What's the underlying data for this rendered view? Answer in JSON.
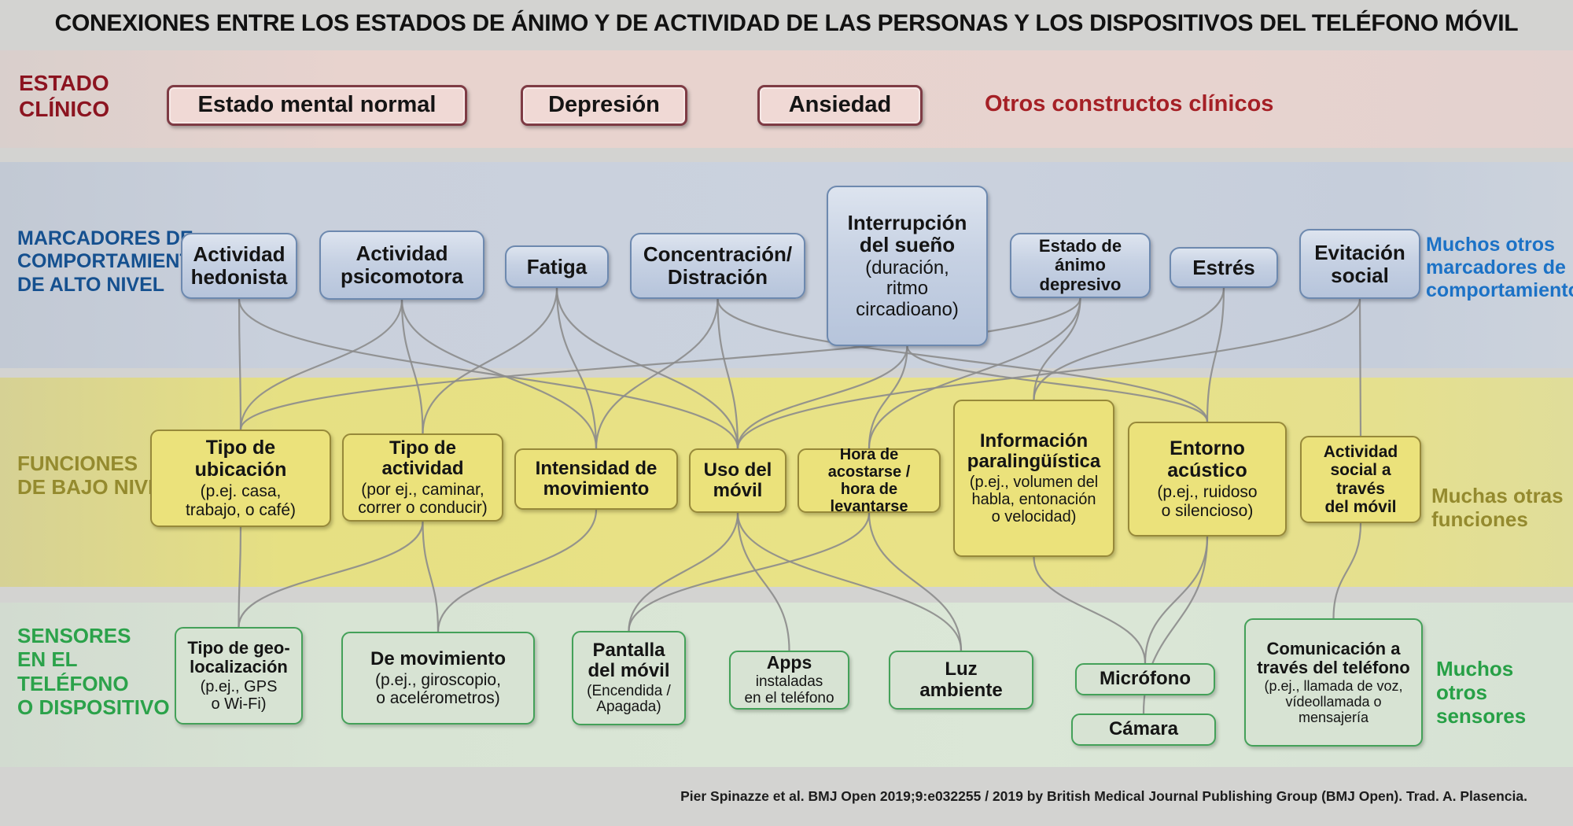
{
  "title": "CONEXIONES ENTRE LOS ESTADOS DE ÁNIMO Y DE ACTIVIDAD DE LAS PERSONAS Y LOS DISPOSITIVOS DEL TELÉFONO MÓVIL",
  "footer": "Pier Spinazze et al. BMJ Open 2019;9:e032255 / 2019 by British Medical Journal Publishing Group (BMJ Open). Trad. A. Plasencia.",
  "rows": {
    "clinical": {
      "label": "ESTADO\nCLÍNICO",
      "note": "Otros constructos clínicos"
    },
    "markers": {
      "label": "MARCADORES DE\nCOMPORTAMIENTO\nDE ALTO NIVEL",
      "note": "Muchos otros\nmarcadores de\ncomportamiento"
    },
    "functions": {
      "label": "FUNCIONES\nDE BAJO NIVEL",
      "note": "Muchas otras\nfunciones"
    },
    "sensors": {
      "label": "SENSORES\nEN EL\nTELÉFONO\nO DISPOSITIVO",
      "note": "Muchos\notros\nsensores"
    }
  },
  "nodes": {
    "mental_normal": {
      "label": "Estado mental normal"
    },
    "depresion": {
      "label": "Depresión"
    },
    "ansiedad": {
      "label": "Ansiedad"
    },
    "hedonista": {
      "label": "Actividad\nhedonista"
    },
    "psicomotora": {
      "label": "Actividad\npsicomotora"
    },
    "fatiga": {
      "label": "Fatiga"
    },
    "concentracion": {
      "label": "Concentración/\nDistración"
    },
    "sueno": {
      "label": "Interrupción\ndel sueño",
      "sub": "(duración,\nritmo\ncircadioano)"
    },
    "depresivo": {
      "label": "Estado de ánimo\ndepresivo"
    },
    "estres": {
      "label": "Estrés"
    },
    "evitacion": {
      "label": "Evitación\nsocial"
    },
    "tipo_ubicacion": {
      "label": "Tipo de\nubicación",
      "sub": "(p.ej. casa,\ntrabajo, o café)"
    },
    "tipo_actividad": {
      "label": "Tipo de actividad",
      "sub": "(por ej., caminar,\ncorrer o conducir)"
    },
    "intensidad": {
      "label": "Intensidad de\nmovimiento"
    },
    "uso_movil": {
      "label": "Uso del\nmóvil"
    },
    "hora_acostarse": {
      "label": "Hora de acostarse /\nhora de levantarse"
    },
    "informacion": {
      "label": "Información\nparalingüística",
      "sub": "(p.ej., volumen del\nhabla, entonación\no velocidad)"
    },
    "entorno": {
      "label": "Entorno\nacústico",
      "sub": "(p.ej., ruidoso\no silencioso)"
    },
    "actividad_social": {
      "label": "Actividad\nsocial a través\ndel móvil"
    },
    "geo": {
      "label": "Tipo de geo-\nlocalización",
      "sub": "(p.ej., GPS\no Wi-Fi)"
    },
    "movimiento": {
      "label": "De movimiento",
      "sub": "(p.ej., giroscopio,\no acelérometros)"
    },
    "pantalla": {
      "label": "Pantalla\ndel móvil",
      "sub": "(Encendida /\nApagada)"
    },
    "apps": {
      "label": "Apps",
      "sub": "instaladas\nen el teléfono"
    },
    "luz": {
      "label": "Luz\nambiente"
    },
    "microfono": {
      "label": "Micrófono"
    },
    "camara": {
      "label": "Cámara"
    },
    "comunicacion": {
      "label": "Comunicación a\ntravés del teléfono",
      "sub": "(p.ej., llamada de voz,\nvídeollamada o\nmensajería"
    }
  },
  "edges": [
    [
      "hedonista",
      "tipo_ubicacion"
    ],
    [
      "hedonista",
      "uso_movil"
    ],
    [
      "psicomotora",
      "tipo_ubicacion"
    ],
    [
      "psicomotora",
      "tipo_actividad"
    ],
    [
      "psicomotora",
      "intensidad"
    ],
    [
      "fatiga",
      "tipo_actividad"
    ],
    [
      "fatiga",
      "intensidad"
    ],
    [
      "fatiga",
      "uso_movil"
    ],
    [
      "concentracion",
      "intensidad"
    ],
    [
      "concentracion",
      "uso_movil"
    ],
    [
      "concentracion",
      "entorno"
    ],
    [
      "sueno",
      "uso_movil"
    ],
    [
      "sueno",
      "hora_acostarse"
    ],
    [
      "sueno",
      "entorno"
    ],
    [
      "depresivo",
      "tipo_ubicacion"
    ],
    [
      "depresivo",
      "hora_acostarse"
    ],
    [
      "depresivo",
      "informacion"
    ],
    [
      "estres",
      "informacion"
    ],
    [
      "estres",
      "entorno"
    ],
    [
      "evitacion",
      "uso_movil"
    ],
    [
      "evitacion",
      "actividad_social"
    ],
    [
      "tipo_ubicacion",
      "geo"
    ],
    [
      "tipo_actividad",
      "geo"
    ],
    [
      "tipo_actividad",
      "movimiento"
    ],
    [
      "intensidad",
      "movimiento"
    ],
    [
      "uso_movil",
      "pantalla"
    ],
    [
      "uso_movil",
      "apps"
    ],
    [
      "uso_movil",
      "luz"
    ],
    [
      "hora_acostarse",
      "pantalla"
    ],
    [
      "hora_acostarse",
      "luz"
    ],
    [
      "informacion",
      "microfono"
    ],
    [
      "entorno",
      "microfono"
    ],
    [
      "entorno",
      "camara"
    ],
    [
      "actividad_social",
      "comunicacion"
    ]
  ],
  "colors": {
    "clinical_label": "#8c1420",
    "clinical_note": "#a52026",
    "clinical_box_fill": "#f0d9d5",
    "clinical_box_border": "#7e3b44",
    "clinical_band": "#e8d3ce",
    "markers_label": "#15508f",
    "markers_note": "#1c72c6",
    "markers_box_fill": "#c6d1e3",
    "markers_box_border": "#6d89af",
    "markers_band": "#cbd2de",
    "functions_label": "#948a2e",
    "functions_box_fill": "#ebe27b",
    "functions_box_border": "#97893a",
    "functions_band": "#e9e287",
    "sensors_label": "#2ba24a",
    "sensors_box_fill": "#d7e3d3",
    "sensors_box_border": "#44a159",
    "sensors_band": "#dbe7d7",
    "connector": "#8c8c8c",
    "background": "#d3d3d1"
  }
}
